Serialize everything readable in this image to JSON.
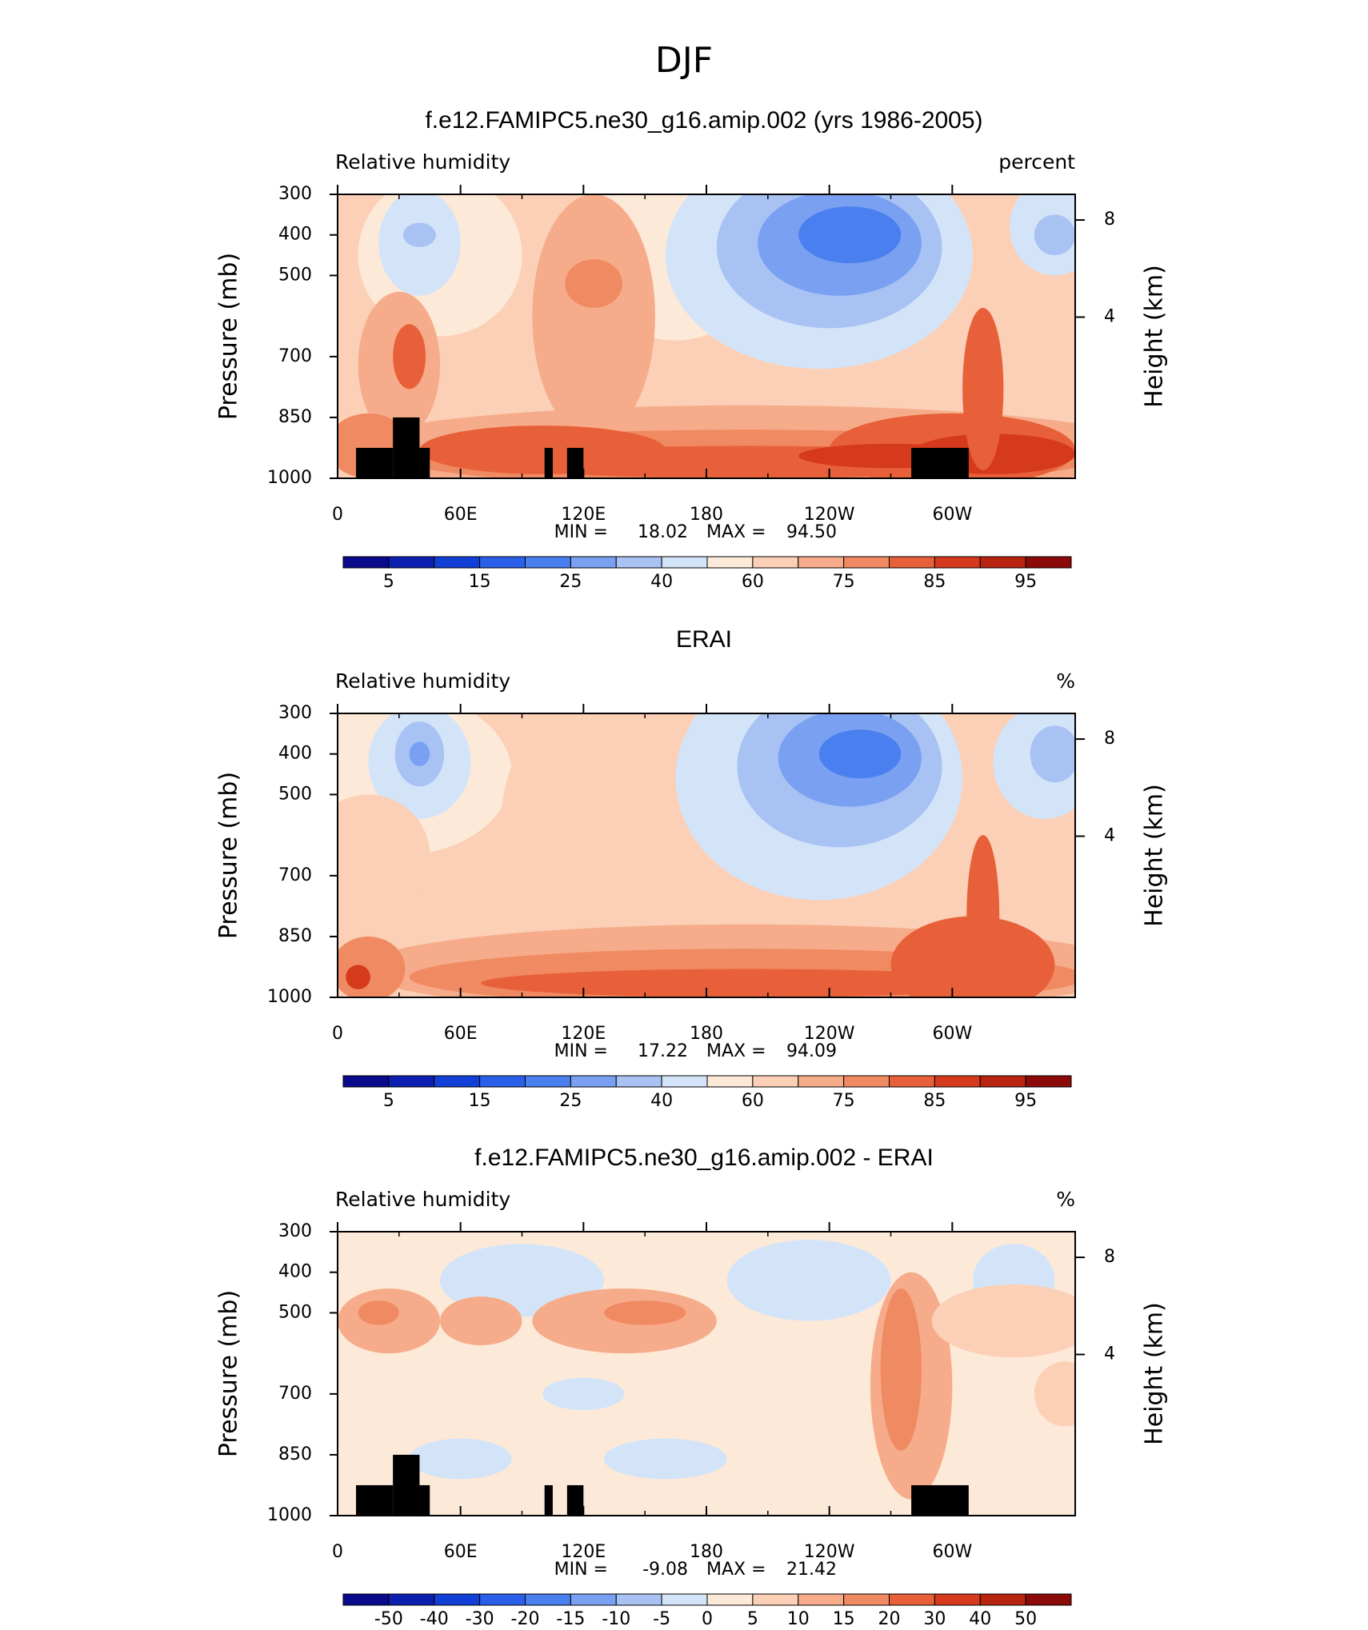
{
  "title": "DJF",
  "chart_data": [
    {
      "type": "contour",
      "title": "f.e12.FAMIPC5.ne30_g16.amip.002 (yrs 1986-2005)",
      "left_label": "Relative humidity",
      "units": "percent",
      "ylabel": "Pressure (mb)",
      "y2label": "Height (km)",
      "xlim": [
        0,
        360
      ],
      "xticks": [
        0,
        {
          "value": 60,
          "label": "60E"
        },
        {
          "value": 120,
          "label": "120E"
        },
        180,
        {
          "value": 240,
          "label": "120W"
        },
        {
          "value": 300,
          "label": "60W"
        }
      ],
      "ylim": [
        1000,
        300
      ],
      "yticks": [
        300,
        400,
        500,
        700,
        850,
        1000
      ],
      "y2ticks": [
        4,
        8
      ],
      "min_label": "MIN =",
      "min": {
        "value": 18.02,
        "label": "18.02"
      },
      "max_label": "MAX =",
      "max": {
        "value": 94.5,
        "label": "94.50"
      },
      "colorbar": {
        "colors": [
          "#0a0a8c",
          "#0c1fb0",
          "#1240d6",
          "#2a5fea",
          "#4a7ff0",
          "#7aa0f2",
          "#a8c2f4",
          "#d4e4f8",
          "#fde9d8",
          "#fbd0b6",
          "#f6ac8a",
          "#f08a62",
          "#e8603a",
          "#d63a1c",
          "#b82410",
          "#8c0a0a"
        ],
        "labels": [
          5,
          15,
          25,
          40,
          60,
          75,
          85,
          95
        ]
      }
    },
    {
      "type": "contour",
      "title": "ERAI",
      "left_label": "Relative humidity",
      "units": "%",
      "ylabel": "Pressure (mb)",
      "y2label": "Height (km)",
      "xlim": [
        0,
        360
      ],
      "xticks": [
        0,
        {
          "value": 60,
          "label": "60E"
        },
        {
          "value": 120,
          "label": "120E"
        },
        180,
        {
          "value": 240,
          "label": "120W"
        },
        {
          "value": 300,
          "label": "60W"
        }
      ],
      "ylim": [
        1000,
        300
      ],
      "yticks": [
        300,
        400,
        500,
        700,
        850,
        1000
      ],
      "y2ticks": [
        4,
        8
      ],
      "min_label": "MIN =",
      "min": {
        "value": 17.22,
        "label": "17.22"
      },
      "max_label": "MAX =",
      "max": {
        "value": 94.09,
        "label": "94.09"
      },
      "colorbar": {
        "colors": [
          "#0a0a8c",
          "#0c1fb0",
          "#1240d6",
          "#2a5fea",
          "#4a7ff0",
          "#7aa0f2",
          "#a8c2f4",
          "#d4e4f8",
          "#fde9d8",
          "#fbd0b6",
          "#f6ac8a",
          "#f08a62",
          "#e8603a",
          "#d63a1c",
          "#b82410",
          "#8c0a0a"
        ],
        "labels": [
          5,
          15,
          25,
          40,
          60,
          75,
          85,
          95
        ]
      }
    },
    {
      "type": "contour",
      "title": "f.e12.FAMIPC5.ne30_g16.amip.002 - ERAI",
      "left_label": "Relative humidity",
      "units": "%",
      "ylabel": "Pressure (mb)",
      "y2label": "Height (km)",
      "xlim": [
        0,
        360
      ],
      "xticks": [
        0,
        {
          "value": 60,
          "label": "60E"
        },
        {
          "value": 120,
          "label": "120E"
        },
        180,
        {
          "value": 240,
          "label": "120W"
        },
        {
          "value": 300,
          "label": "60W"
        }
      ],
      "ylim": [
        1000,
        300
      ],
      "yticks": [
        300,
        400,
        500,
        700,
        850,
        1000
      ],
      "y2ticks": [
        4,
        8
      ],
      "min_label": "MIN =",
      "min": {
        "value": -9.08,
        "label": "-9.08"
      },
      "max_label": "MAX =",
      "max": {
        "value": 21.42,
        "label": "21.42"
      },
      "colorbar": {
        "colors": [
          "#0a0a8c",
          "#0c1fb0",
          "#1240d6",
          "#2a5fea",
          "#4a7ff0",
          "#7aa0f2",
          "#a8c2f4",
          "#d4e4f8",
          "#fde9d8",
          "#fbd0b6",
          "#f6ac8a",
          "#f08a62",
          "#e8603a",
          "#d63a1c",
          "#b82410",
          "#8c0a0a"
        ],
        "labels": [
          -50,
          -40,
          -30,
          -20,
          -15,
          -10,
          -5,
          0,
          5,
          10,
          15,
          20,
          30,
          40,
          50
        ]
      }
    }
  ]
}
